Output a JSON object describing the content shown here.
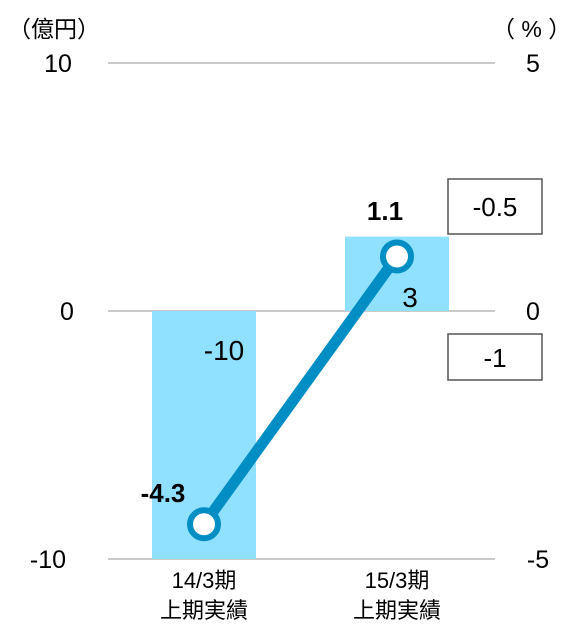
{
  "chart_data": {
    "type": "bar",
    "categories": [
      [
        "14/3期",
        "上期実績"
      ],
      [
        "15/3期",
        "上期実績"
      ]
    ],
    "left_axis": {
      "unit_label": "（億円）",
      "ylim": [
        -10,
        10
      ],
      "ticks": [
        "10",
        "0",
        "-10"
      ]
    },
    "right_axis": {
      "unit_label": "（ % ）",
      "ylim": [
        -5,
        5
      ],
      "ticks": [
        "5",
        "0",
        "-5"
      ]
    },
    "bar_series": {
      "values": [
        -10,
        3
      ],
      "labels": [
        "-10",
        "3"
      ],
      "color": "#8fe1ff"
    },
    "line_series": {
      "values": [
        -4.3,
        1.1
      ],
      "labels": [
        "-4.3",
        "1.1"
      ],
      "color": "#008ec4"
    },
    "boxed_labels": [
      "-0.5",
      "-1"
    ],
    "grid": "horizontal"
  }
}
